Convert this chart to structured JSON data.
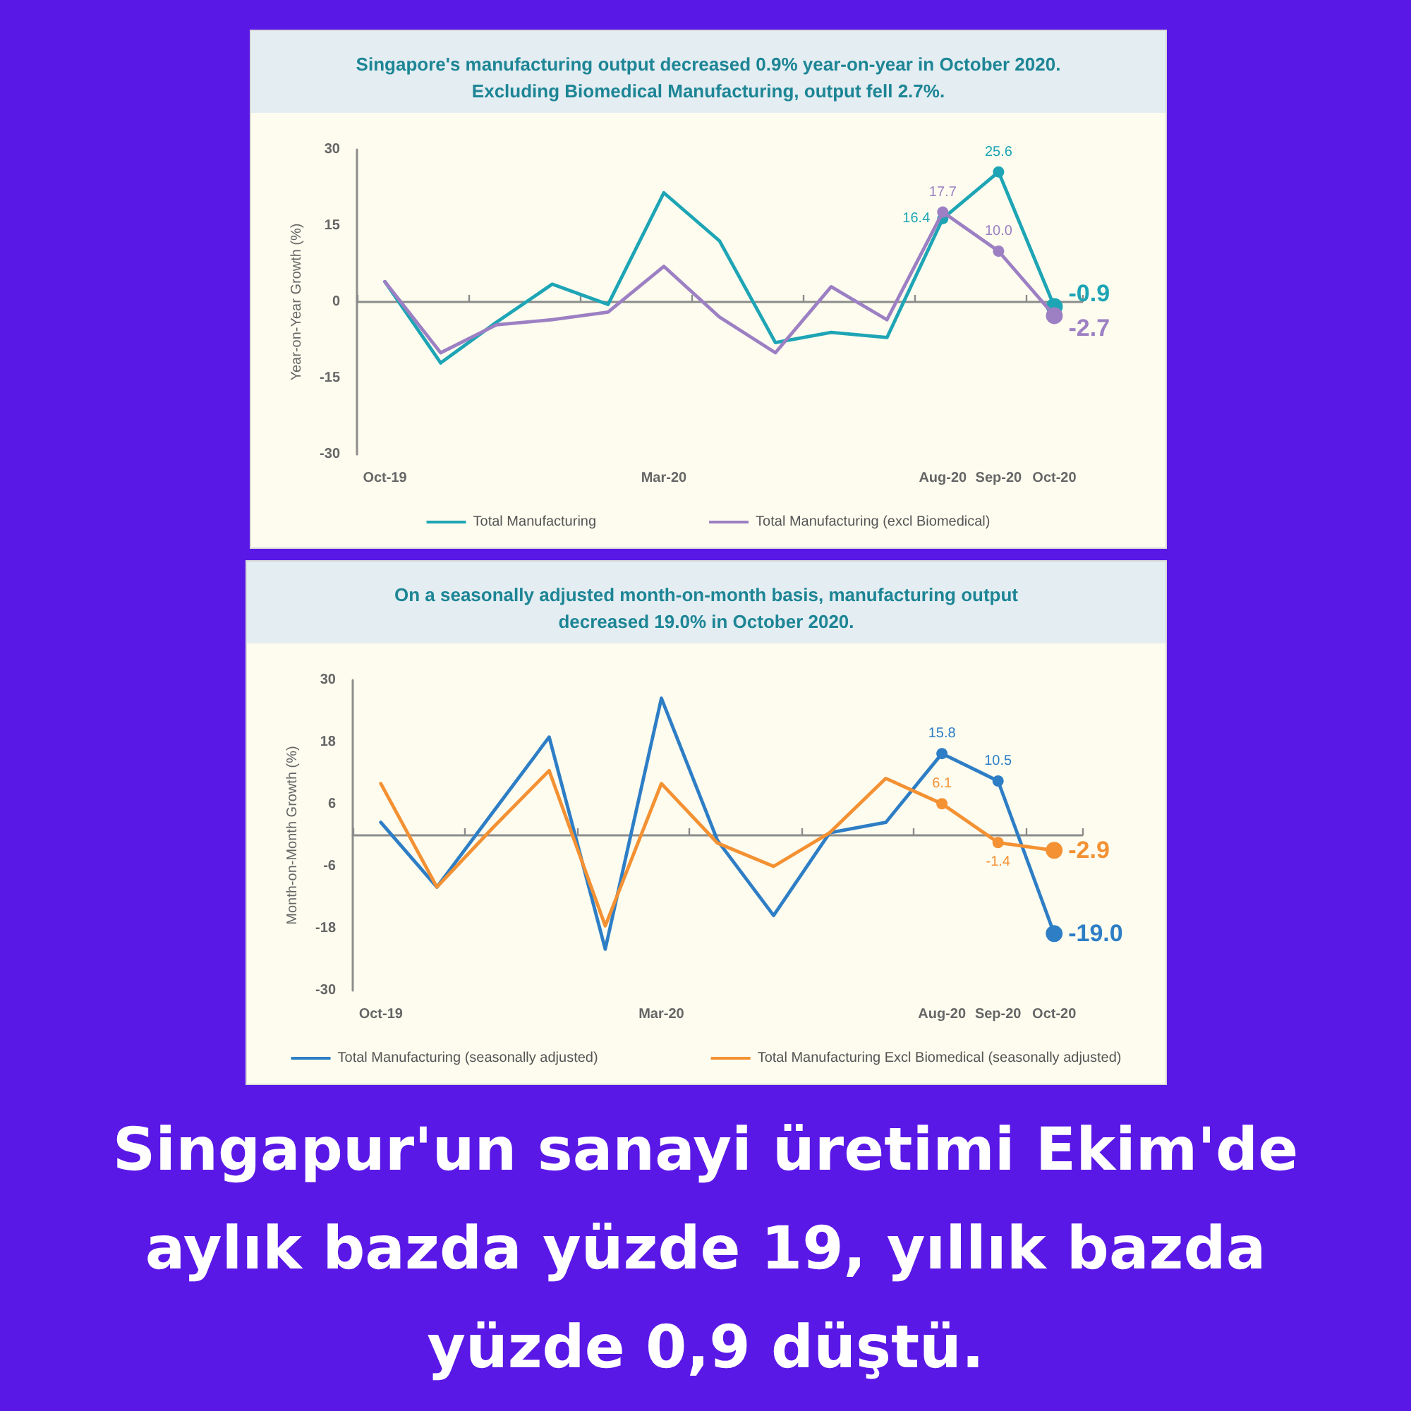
{
  "chart_data": [
    {
      "type": "line",
      "title": "Singapore's manufacturing output decreased 0.9% year-on-year in October 2020.\nExcluding Biomedical Manufacturing, output fell 2.7%.",
      "ylabel": "Year-on-Year Growth (%)",
      "categories": [
        "Oct-19",
        null,
        null,
        null,
        null,
        "Mar-20",
        null,
        null,
        null,
        null,
        "Aug-20",
        "Sep-20",
        "Oct-20"
      ],
      "series": [
        {
          "name": "Total Manufacturing",
          "color": "#1ea5b5",
          "values": [
            4,
            -12,
            -4,
            3.5,
            -0.5,
            21.5,
            12,
            -8,
            -6,
            -7,
            16.4,
            25.6,
            -0.9
          ],
          "value_labels": [
            null,
            null,
            null,
            null,
            null,
            null,
            null,
            null,
            null,
            null,
            "16.4",
            "25.6",
            "-0.9"
          ]
        },
        {
          "name": "Total Manufacturing (excl Biomedical)",
          "color": "#9d80c3",
          "values": [
            4,
            -10,
            -4.5,
            -3.5,
            -2,
            7,
            -3,
            -10,
            3,
            -3.5,
            17.7,
            10.0,
            -2.7
          ],
          "value_labels": [
            null,
            null,
            null,
            null,
            null,
            null,
            null,
            null,
            null,
            null,
            "17.7",
            "10.0",
            "-2.7"
          ]
        }
      ],
      "ylim": [
        -30,
        30
      ],
      "yticks": [
        -30,
        -15,
        0,
        15,
        30
      ],
      "legend": "bottom",
      "line_style": "solid"
    },
    {
      "type": "line",
      "title": "On a seasonally adjusted month-on-month basis, manufacturing output\ndecreased 19.0% in October 2020.",
      "ylabel": "Month-on-Month Growth (%)",
      "categories": [
        "Oct-19",
        null,
        null,
        null,
        null,
        "Mar-20",
        null,
        null,
        null,
        null,
        "Aug-20",
        "Sep-20",
        "Oct-20"
      ],
      "series": [
        {
          "name": "Total Manufacturing (seasonally adjusted)",
          "color": "#2e7ec6",
          "values": [
            2.5,
            -10,
            4.5,
            19,
            -22,
            26.5,
            -1,
            -15.5,
            0.5,
            2.5,
            15.8,
            10.5,
            -19.0
          ],
          "value_labels": [
            null,
            null,
            null,
            null,
            null,
            null,
            null,
            null,
            null,
            null,
            "15.8",
            "10.5",
            "-19.0"
          ]
        },
        {
          "name": "Total Manufacturing Excl Biomedical (seasonally adjusted)",
          "color": "#f39133",
          "values": [
            10,
            -10,
            1.5,
            12.5,
            -17.5,
            10,
            -1.5,
            -6,
            0.5,
            11,
            6.1,
            -1.4,
            -2.9
          ],
          "value_labels": [
            null,
            null,
            null,
            null,
            null,
            null,
            null,
            null,
            null,
            null,
            "6.1",
            "-1.4",
            "-2.9"
          ]
        }
      ],
      "ylim": [
        -30,
        30
      ],
      "yticks": [
        -30,
        -18,
        -6,
        6,
        18,
        30
      ],
      "legend": "bottom",
      "line_style": "solid",
      "annotations": [
        "Singapur'un sanayi üretimi Ekim'de aylık bazda yüzde 19, yıllık bazda yüzde 0,9 düştü."
      ]
    }
  ]
}
